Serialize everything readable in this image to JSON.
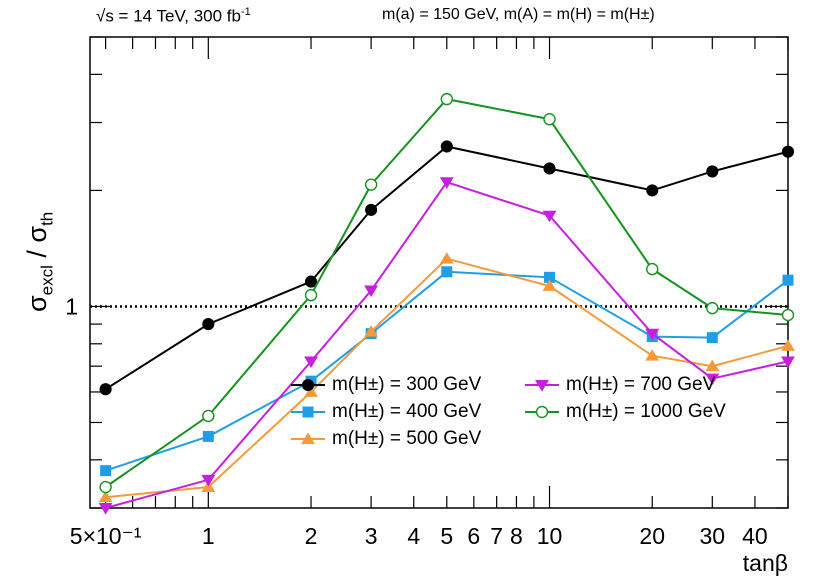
{
  "header": {
    "energy_lumi_prefix": "√s = 14 TeV, 300 fb",
    "energy_lumi_sup": "-1",
    "mass_condition": "m(a) = 150 GeV, m(A) = m(H) = m(H±)"
  },
  "colors": {
    "m300": "#000000",
    "m400": "#1f9ee8",
    "m500": "#f59a3a",
    "m700": "#c81ee0",
    "m1000": "#13941e"
  },
  "chart_data": {
    "type": "line",
    "title": "",
    "xlabel": "tanβ",
    "ylabel": "σexcl / σth",
    "ylabel_main": "σ",
    "ylabel_sub1": "excl",
    "ylabel_mid": " / σ",
    "ylabel_sub2": "th",
    "xscale": "log",
    "yscale": "log",
    "xlim": [
      0.45,
      50
    ],
    "ylim": [
      0.3,
      5.0
    ],
    "x_tick_labels": [
      {
        "value": 0.5,
        "label": "5×10⁻¹"
      },
      {
        "value": 1,
        "label": "1"
      },
      {
        "value": 2,
        "label": "2"
      },
      {
        "value": 3,
        "label": "3"
      },
      {
        "value": 4,
        "label": "4"
      },
      {
        "value": 5,
        "label": "5"
      },
      {
        "value": 6,
        "label": "6"
      },
      {
        "value": 7,
        "label": "7"
      },
      {
        "value": 8,
        "label": "8"
      },
      {
        "value": 10,
        "label": "10"
      },
      {
        "value": 20,
        "label": "20"
      },
      {
        "value": 30,
        "label": "30"
      },
      {
        "value": 40,
        "label": "40"
      }
    ],
    "y_tick_labels": [
      {
        "value": 1,
        "label": "1"
      }
    ],
    "reference_line": {
      "y": 1,
      "style": "dotted"
    },
    "x": [
      0.5,
      1,
      2,
      3,
      5,
      10,
      20,
      30,
      50
    ],
    "series": [
      {
        "key": "m300",
        "name": "m(H±) = 300  GeV",
        "marker": "circle-filled",
        "values": [
          0.61,
          0.9,
          1.16,
          1.78,
          2.6,
          2.28,
          2.0,
          2.24,
          2.52
        ]
      },
      {
        "key": "m400",
        "name": "m(H±) = 400  GeV",
        "marker": "square-filled",
        "values": [
          0.375,
          0.46,
          0.64,
          0.85,
          1.23,
          1.19,
          0.835,
          0.83,
          1.17
        ]
      },
      {
        "key": "m500",
        "name": "m(H±) = 500  GeV",
        "marker": "triangle-up-filled",
        "values": [
          0.32,
          0.34,
          0.6,
          0.86,
          1.33,
          1.13,
          0.745,
          0.7,
          0.79
        ]
      },
      {
        "key": "m700",
        "name": "m(H±) = 700  GeV",
        "marker": "triangle-down-filled",
        "values": [
          0.3,
          0.355,
          0.72,
          1.1,
          2.1,
          1.72,
          0.85,
          0.65,
          0.72
        ]
      },
      {
        "key": "m1000",
        "name": "m(H±) = 1000  GeV",
        "marker": "circle-open",
        "values": [
          0.34,
          0.52,
          1.07,
          2.07,
          3.45,
          3.06,
          1.25,
          0.99,
          0.95
        ]
      }
    ]
  }
}
